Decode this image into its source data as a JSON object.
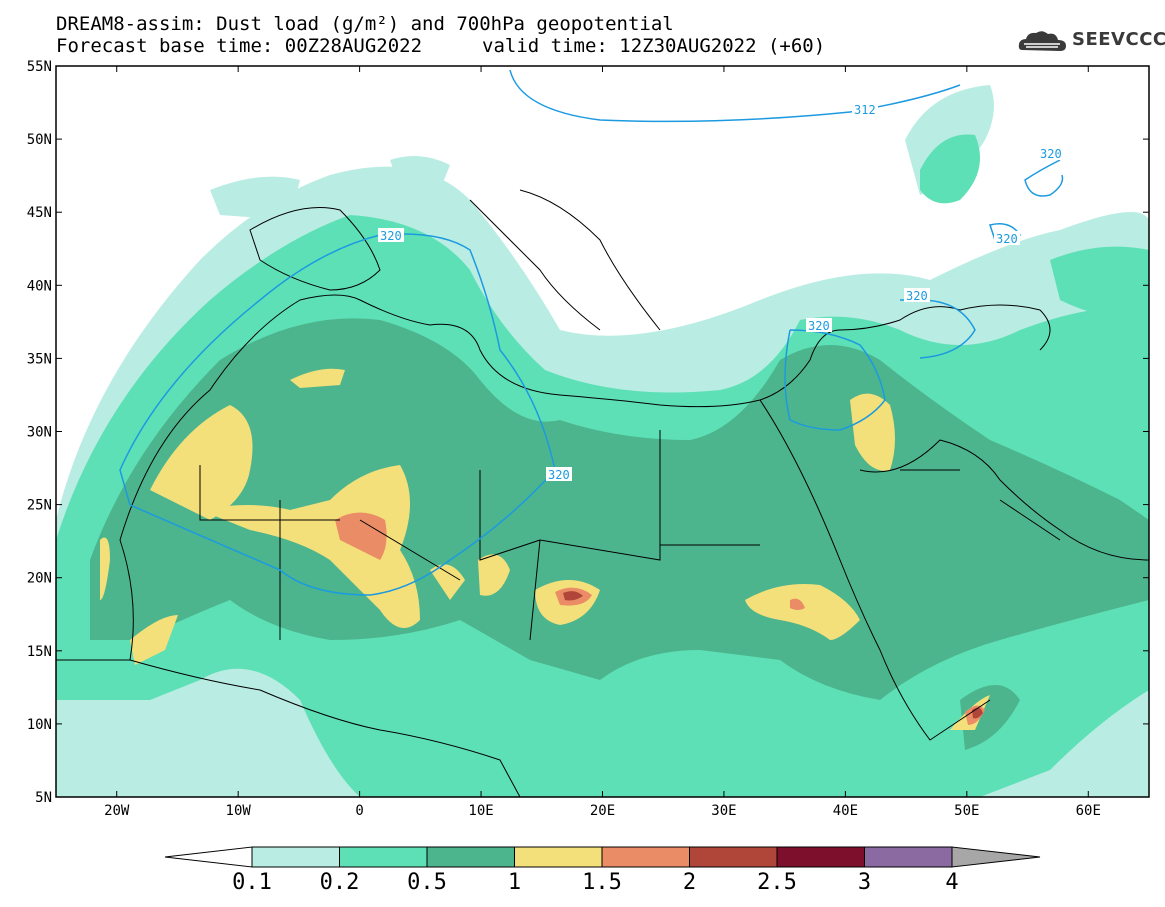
{
  "title_line1": "DREAM8-assim: Dust load (g/m²) and 700hPa geopotential",
  "title_line2_left": "Forecast base time: 00Z28AUG2022",
  "title_line2_right": "valid time: 12Z30AUG2022 (+60)",
  "logo_text": "SEEVCCC",
  "logo_icon": "cloud-icon",
  "map": {
    "lon_range": [
      -25,
      65
    ],
    "lat_range": [
      5,
      55
    ],
    "lat_labels": [
      "55N",
      "50N",
      "45N",
      "40N",
      "35N",
      "30N",
      "25N",
      "20N",
      "15N",
      "10N",
      "5N"
    ],
    "lon_labels": [
      "20W",
      "10W",
      "0",
      "10E",
      "20E",
      "30E",
      "40E",
      "50E",
      "60E"
    ],
    "contour_labels": [
      "312",
      "320",
      "320",
      "320",
      "320",
      "320",
      "320"
    ],
    "contour_color": "#1c9ae0"
  },
  "colorbar": {
    "tick_labels": [
      "0.1",
      "0.2",
      "0.5",
      "1",
      "1.5",
      "2",
      "2.5",
      "3",
      "4"
    ],
    "colors": [
      "#b9ede3",
      "#5ee0b6",
      "#4db58d",
      "#f4e07a",
      "#ea8d66",
      "#b0463a",
      "#7e0f2c",
      "#8a6aa0",
      "#a7a7a7"
    ],
    "under_color": "#ffffff"
  }
}
